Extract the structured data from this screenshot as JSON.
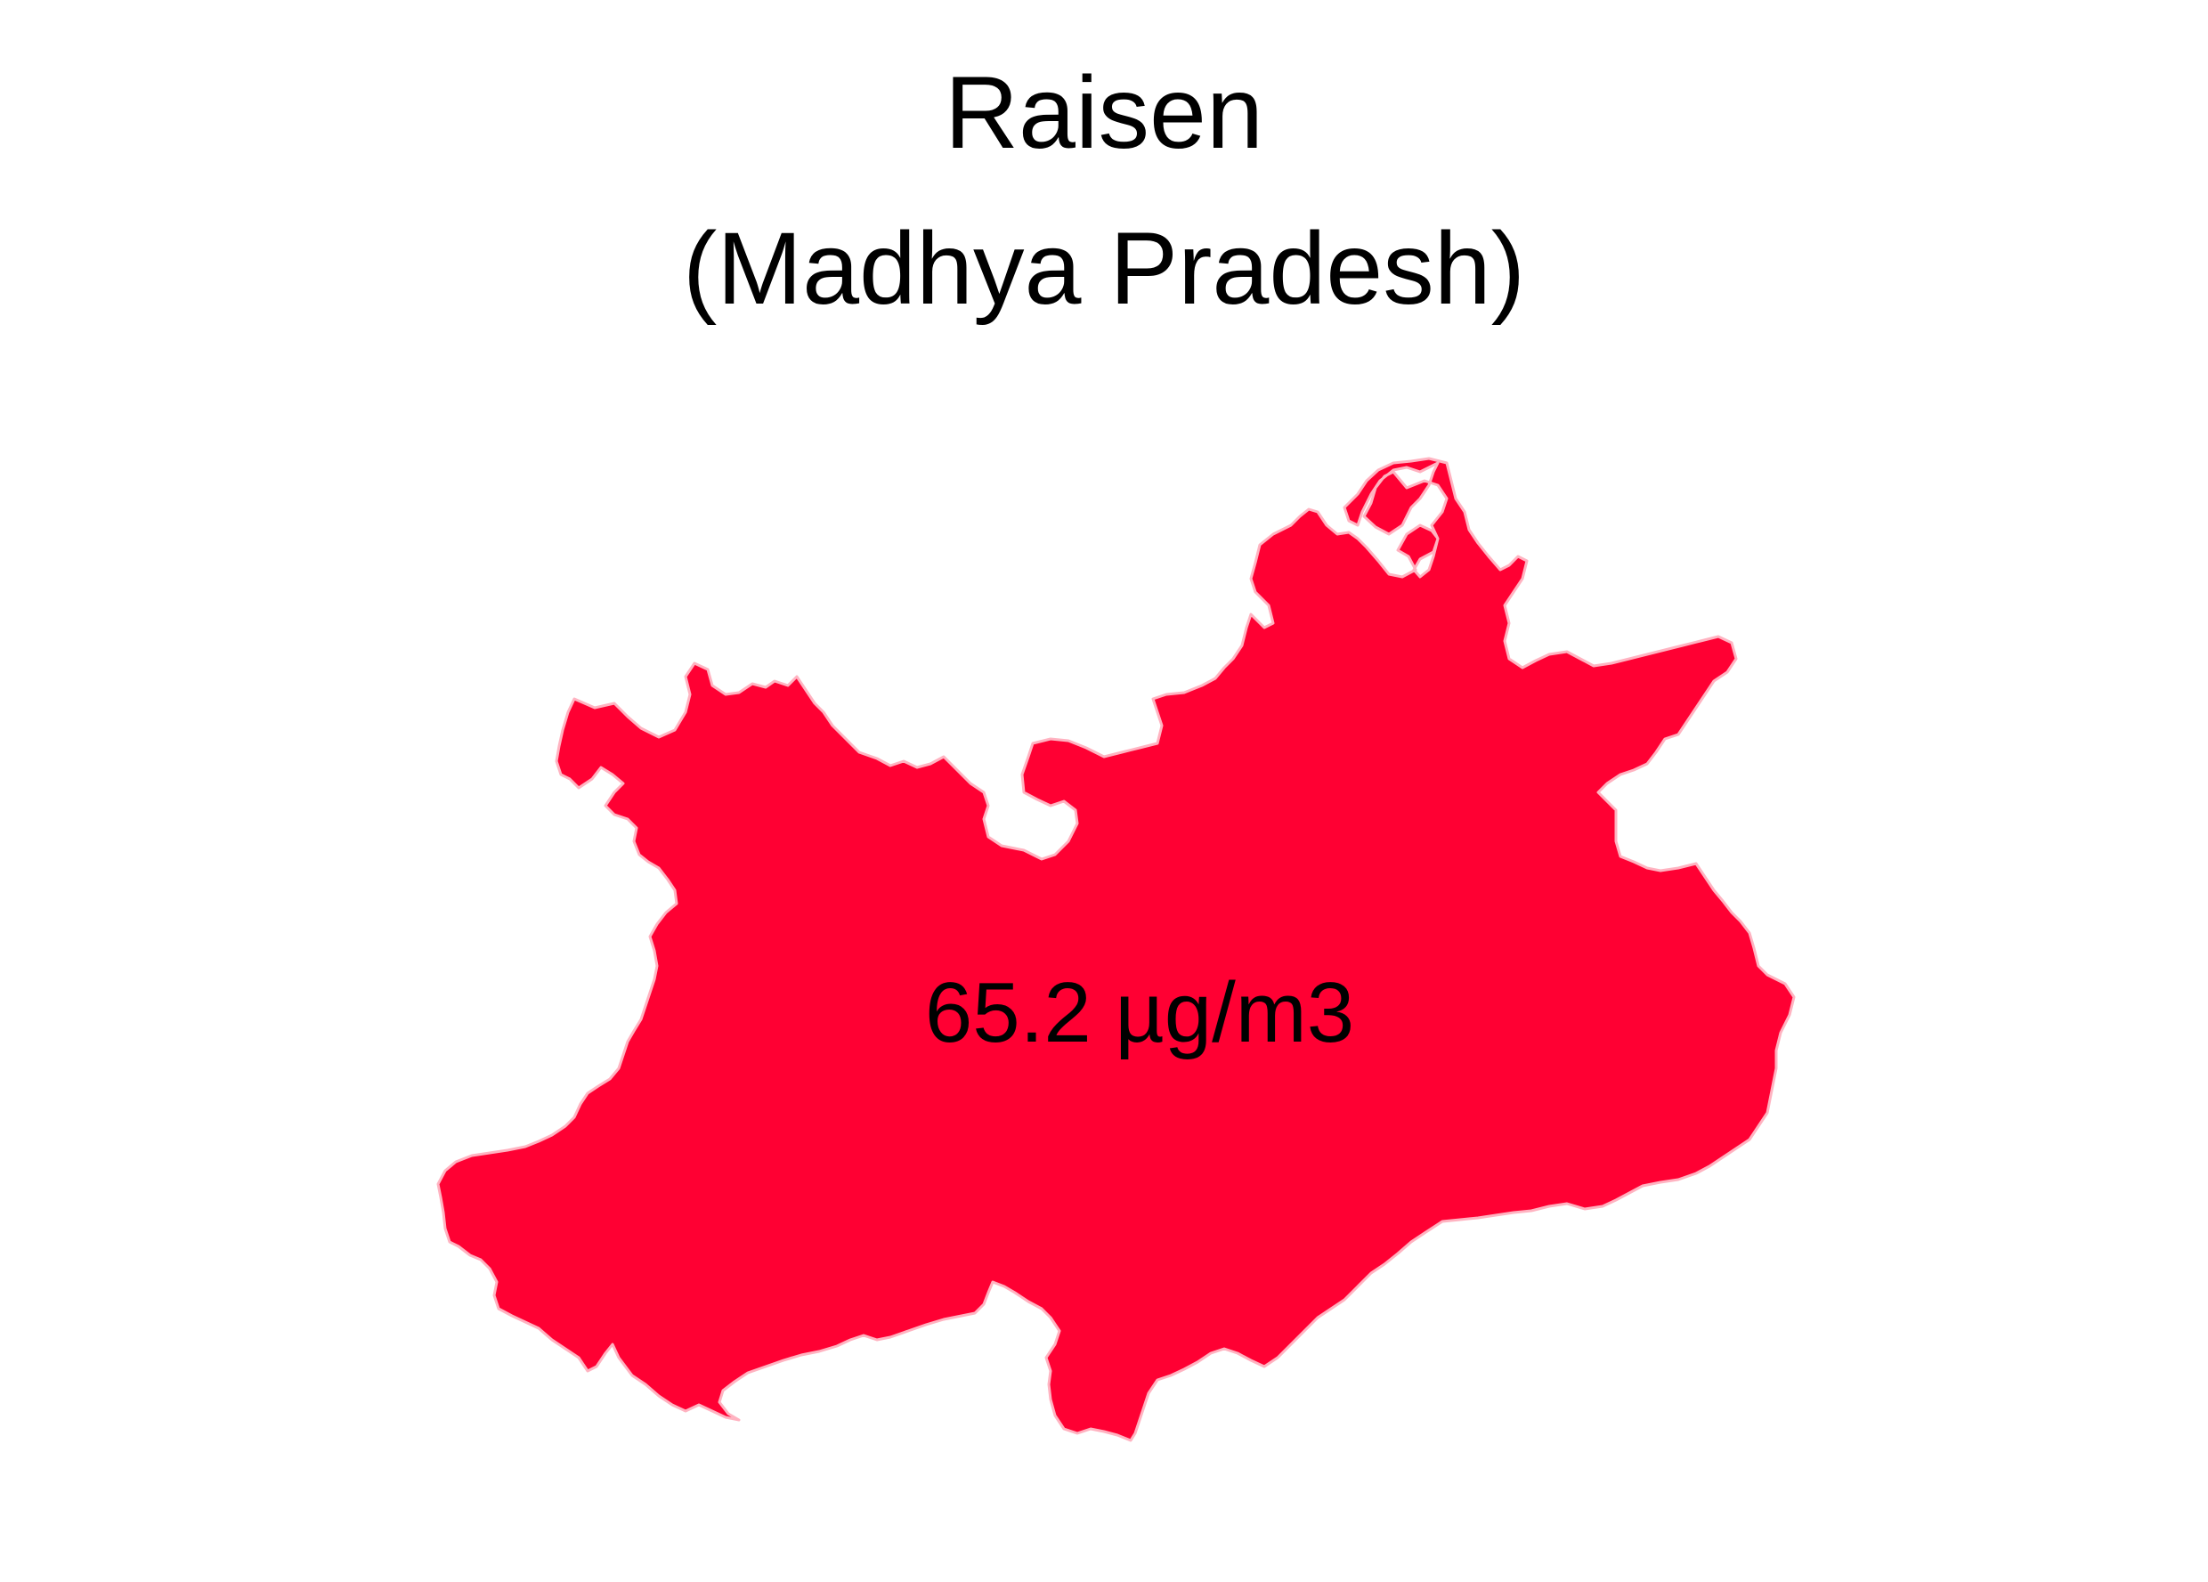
{
  "map": {
    "title_line_1": "Raisen",
    "title_line_2": "(Madhya Pradesh)",
    "district": "Raisen",
    "state": "Madhya Pradesh",
    "value_label": "65.2 µg/m3",
    "fill_color": "#FF0033",
    "border_color": "#FFB3C1",
    "text_color": "#000000",
    "background_color": "#FFFFFF"
  }
}
